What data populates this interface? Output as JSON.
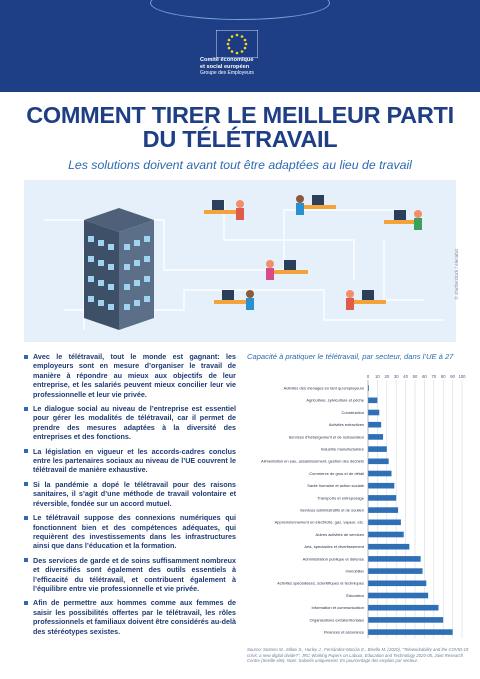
{
  "header": {
    "org_line1": "Comité économique",
    "org_line2": "et social européen",
    "org_group": "Groupe des Employeurs"
  },
  "title_line1": "COMMENT TIRER LE MEILLEUR PARTI",
  "title_line2": "DU TÉLÉTRAVAIL",
  "subtitle": "Les solutions doivent avant tout être adaptées au lieu de travail",
  "image_credit": "© shutterstock / elenabsl",
  "bullets": [
    "Avec le télétravail, tout le monde est gagnant: les employeurs sont en mesure d’organiser le travail de manière à répondre au mieux aux objectifs de leur entreprise, et les salariés peuvent mieux concilier leur vie professionnelle et leur vie privée.",
    "Le dialogue social au niveau de l’entreprise est essentiel pour gérer les modalités de télétravail, car il permet de prendre des mesures adaptées à la diversité des entreprises et des fonctions.",
    "La législation en vigueur et les accords-cadres conclus entre les partenaires sociaux au niveau de l’UE couvrent le télétravail de manière exhaustive.",
    "Si la pandémie a dopé le télétravail pour des raisons sanitaires, il s’agit d’une méthode de travail volontaire et réversible, fondée sur un accord mutuel.",
    "Le télétravail suppose des connexions numériques qui fonctionnent bien et des compétences adéquates, qui requièrent des investissements dans les infrastructures ainsi que dans l’éducation et la formation.",
    "Des services de garde et de soins suffisamment nombreux et diversifiés sont également des outils essentiels à l’efficacité du télétravail, et contribuent également à l’équilibre entre vie professionnelle et vie privée.",
    "Afin de permettre aux hommes comme aux femmes de saisir les possibilités offertes par le télétravail, les rôles professionnels et familiaux doivent être considérés au-delà des stéréotypes sexistes."
  ],
  "chart_data": {
    "type": "bar",
    "orientation": "horizontal",
    "title": "Capacité à pratiquer le télétravail, par secteur, dans l’UE à 27",
    "xlim": [
      0,
      100
    ],
    "xticks": [
      0,
      10,
      20,
      30,
      40,
      50,
      60,
      70,
      80,
      90,
      100
    ],
    "grid": true,
    "categories": [
      "Activités des ménages en tant qu’employeurs",
      "Agriculture, sylviculture et pêche",
      "Construction",
      "Activités extractives",
      "Services d’hébergement et de restauration",
      "Industrie manufacturière",
      "Alimentation en eau, assainissement, gestion des déchets",
      "Commerce de gros et de détail",
      "Santé humaine et action sociale",
      "Transports et entreposage",
      "Services administratifs et de soutien",
      "Approvisionnement en électricité, gaz, vapeur, etc.",
      "Autres activités de services",
      "Arts, spectacles et divertissement",
      "Administration publique et défense",
      "Immobilier",
      "Activités spécialisées, scientifiques et techniques",
      "Éducation",
      "Information et communication",
      "Organisations extraterritoriales",
      "Finances et assurance"
    ],
    "values": [
      1,
      10,
      12,
      14,
      16,
      20,
      22,
      25,
      28,
      30,
      32,
      35,
      38,
      44,
      56,
      58,
      62,
      64,
      75,
      80,
      90
    ],
    "bar_color": "#2f6fb5",
    "source": "Source: Sostero M., Milasi S., Hurley J., Fernández-Macías E., Bisello M. (2020), \"Teleworkability and the COVID-19 crisis: a new digital divide?\", JRC Working Papers on Labour, Education and Technology 2020-05, Joint Research Centre (Seville site). Note: Salariés uniquement. En pourcentage des emplois par secteur."
  }
}
